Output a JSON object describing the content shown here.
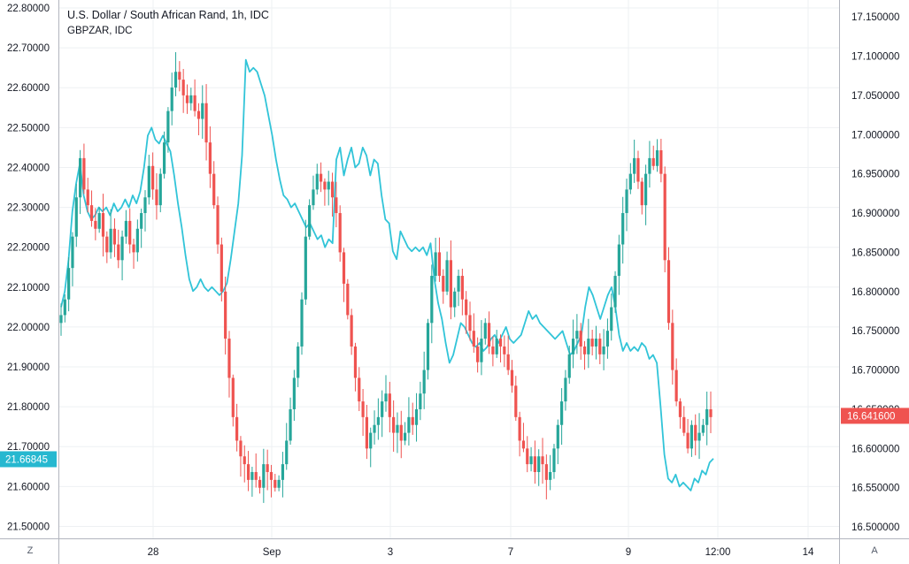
{
  "legend": {
    "main": "U.S. Dollar / South African Rand, 1h, IDC",
    "compare": "GBPZAR, IDC"
  },
  "corner_buttons": {
    "left": "Z",
    "right": "A"
  },
  "colors": {
    "up": "#26a69a",
    "down": "#ef5350",
    "compare_line": "#31c4d8",
    "grid": "#eef0f3",
    "axis_line": "#b2b5be",
    "left_badge": "#26b8d0",
    "right_badge": "#ef5350"
  },
  "chart_data": {
    "type": "line",
    "title": "U.S. Dollar / South African Rand, 1h, IDC",
    "interval": "1h",
    "x_tick_labels": [
      "28",
      "Sep",
      "3",
      "7",
      "9",
      "12:00",
      "14"
    ],
    "left_axis": {
      "ylim": [
        21.47,
        22.82
      ],
      "ticks": [
        "21.50000",
        "21.60000",
        "21.70000",
        "21.80000",
        "21.90000",
        "22.00000",
        "22.10000",
        "22.20000",
        "22.30000",
        "22.40000",
        "22.50000",
        "22.60000",
        "22.70000",
        "22.80000"
      ],
      "last_value": "21.66845"
    },
    "right_axis": {
      "ylim": [
        16.4855,
        17.1715
      ],
      "ticks": [
        "16.500000",
        "16.550000",
        "16.600000",
        "16.650000",
        "16.700000",
        "16.750000",
        "16.800000",
        "16.850000",
        "16.900000",
        "16.950000",
        "17.000000",
        "17.050000",
        "17.100000",
        "17.150000"
      ],
      "last_value": "16.641600"
    },
    "series": [
      {
        "name": "U.S. Dollar / South African Rand, 1h, IDC",
        "axis": "right",
        "style": "candles",
        "close": [
          16.77,
          16.79,
          16.83,
          16.87,
          16.92,
          16.97,
          16.93,
          16.91,
          16.89,
          16.88,
          16.9,
          16.87,
          16.85,
          16.88,
          16.86,
          16.84,
          16.87,
          16.89,
          16.86,
          16.85,
          16.88,
          16.9,
          16.92,
          16.96,
          16.93,
          16.91,
          16.95,
          16.99,
          17.03,
          17.06,
          17.08,
          17.07,
          17.05,
          17.04,
          17.05,
          17.03,
          17.02,
          17.04,
          16.99,
          16.95,
          16.91,
          16.86,
          16.8,
          16.74,
          16.69,
          16.64,
          16.61,
          16.59,
          16.58,
          16.56,
          16.57,
          16.56,
          16.55,
          16.58,
          16.57,
          16.56,
          16.55,
          16.56,
          16.58,
          16.61,
          16.65,
          16.69,
          16.73,
          16.79,
          16.87,
          16.91,
          16.93,
          16.95,
          16.94,
          16.93,
          16.94,
          16.92,
          16.9,
          16.85,
          16.81,
          16.77,
          16.73,
          16.69,
          16.66,
          16.64,
          16.6,
          16.62,
          16.63,
          16.64,
          16.66,
          16.67,
          16.64,
          16.62,
          16.63,
          16.61,
          16.62,
          16.64,
          16.63,
          16.65,
          16.67,
          16.7,
          16.76,
          16.82,
          16.85,
          16.82,
          16.8,
          16.84,
          16.78,
          16.8,
          16.82,
          16.79,
          16.77,
          16.75,
          16.73,
          16.71,
          16.74,
          16.76,
          16.73,
          16.72,
          16.74,
          16.73,
          16.72,
          16.7,
          16.68,
          16.64,
          16.61,
          16.6,
          16.58,
          16.59,
          16.57,
          16.59,
          16.58,
          16.56,
          16.57,
          16.6,
          16.63,
          16.66,
          16.69,
          16.72,
          16.74,
          16.75,
          16.73,
          16.72,
          16.74,
          16.73,
          16.74,
          16.72,
          16.73,
          16.75,
          16.78,
          16.82,
          16.86,
          16.9,
          16.93,
          16.95,
          16.97,
          16.94,
          16.91,
          16.95,
          16.97,
          16.96,
          16.98,
          16.95,
          16.84,
          16.76,
          16.7,
          16.66,
          16.64,
          16.62,
          16.6,
          16.63,
          16.61,
          16.62,
          16.63,
          16.65,
          16.64
        ]
      },
      {
        "name": "GBPZAR, IDC",
        "axis": "left",
        "style": "line",
        "values": [
          22.05,
          22.09,
          22.17,
          22.29,
          22.36,
          22.41,
          22.33,
          22.29,
          22.27,
          22.28,
          22.3,
          22.29,
          22.3,
          22.28,
          22.31,
          22.29,
          22.3,
          22.32,
          22.3,
          22.33,
          22.31,
          22.34,
          22.4,
          22.48,
          22.5,
          22.47,
          22.46,
          22.48,
          22.46,
          22.44,
          22.38,
          22.31,
          22.25,
          22.18,
          22.12,
          22.09,
          22.1,
          22.12,
          22.1,
          22.09,
          22.1,
          22.09,
          22.08,
          22.09,
          22.11,
          22.17,
          22.24,
          22.31,
          22.43,
          22.67,
          22.64,
          22.65,
          22.64,
          22.61,
          22.58,
          22.53,
          22.48,
          22.42,
          22.37,
          22.33,
          22.32,
          22.3,
          22.31,
          22.29,
          22.27,
          22.25,
          22.26,
          22.24,
          22.22,
          22.23,
          22.2,
          22.22,
          22.21,
          22.42,
          22.45,
          22.38,
          22.42,
          22.45,
          22.4,
          22.41,
          22.45,
          22.43,
          22.38,
          22.42,
          22.41,
          22.33,
          22.27,
          22.26,
          22.19,
          22.17,
          22.24,
          22.22,
          22.2,
          22.19,
          22.2,
          22.19,
          22.2,
          22.18,
          22.21,
          22.12,
          22.06,
          22.02,
          21.96,
          21.91,
          21.93,
          21.97,
          22.01,
          22.0,
          21.98,
          21.96,
          21.95,
          21.96,
          21.94,
          21.95,
          21.97,
          21.98,
          21.96,
          21.98,
          22.0,
          21.97,
          21.96,
          21.97,
          21.98,
          22.01,
          22.04,
          22.02,
          22.03,
          22.01,
          22.0,
          21.99,
          21.98,
          21.97,
          21.98,
          21.99,
          21.96,
          21.93,
          21.94,
          21.96,
          21.98,
          22.05,
          22.1,
          22.08,
          22.05,
          22.02,
          22.05,
          22.08,
          22.1,
          22.05,
          21.98,
          21.94,
          21.96,
          21.94,
          21.95,
          21.94,
          21.96,
          21.95,
          21.92,
          21.93,
          21.91,
          21.8,
          21.68,
          21.62,
          21.61,
          21.63,
          21.6,
          21.61,
          21.6,
          21.59,
          21.62,
          21.61,
          21.64,
          21.63,
          21.66,
          21.67
        ]
      }
    ]
  }
}
